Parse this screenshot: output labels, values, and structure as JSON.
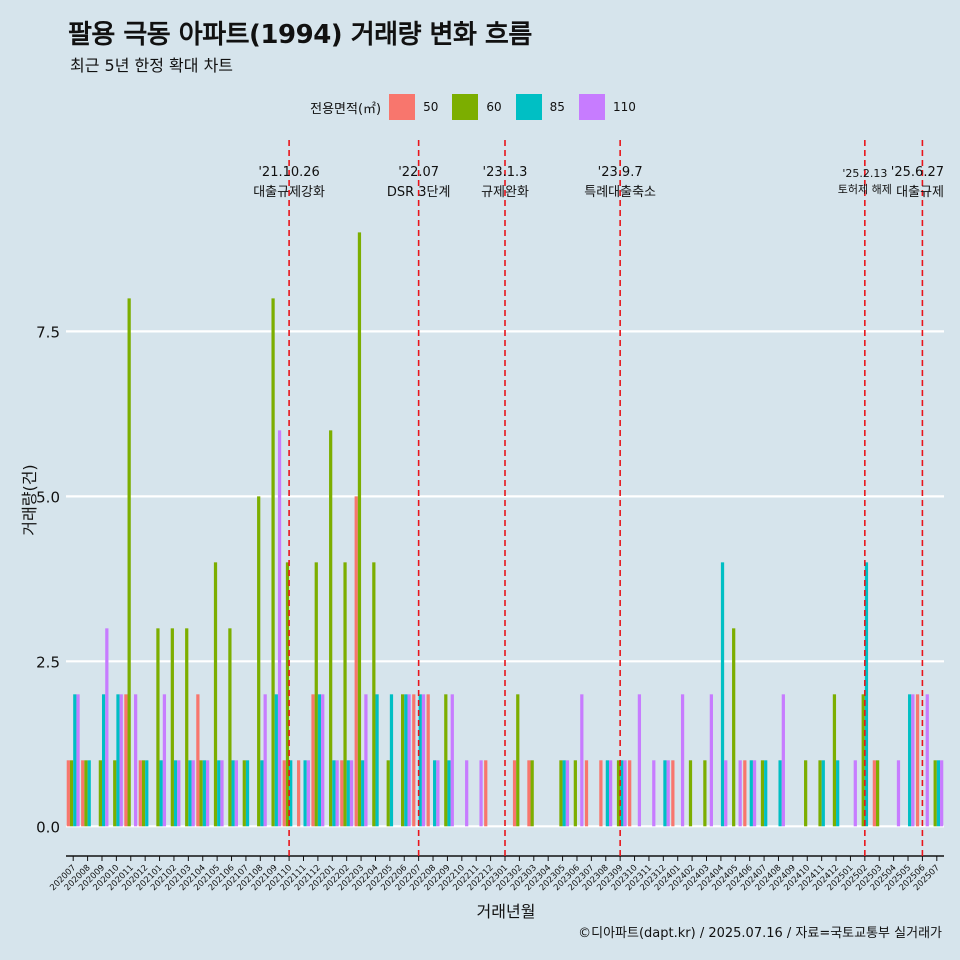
{
  "header": {
    "title": "팔용 극동 아파트(1994) 거래량 변화 흐름",
    "subtitle": "최근 5년 한정 확대 차트"
  },
  "legend": {
    "title": "전용면적(㎡)",
    "items": [
      {
        "label": "50",
        "color": "#F8766D"
      },
      {
        "label": "60",
        "color": "#7CAE00"
      },
      {
        "label": "85",
        "color": "#00BFC4"
      },
      {
        "label": "110",
        "color": "#C77CFF"
      }
    ]
  },
  "caption": "©디아파트(dapt.kr) / 2025.07.16 / 자료=국토교통부 실거래가",
  "chart_data": {
    "type": "bar",
    "title": "팔용 극동 아파트(1994) 거래량 변화 흐름",
    "xlabel": "거래년월",
    "ylabel": "거래량(건)",
    "ylim": [
      -0.45,
      10.4
    ],
    "yticks": [
      0.0,
      2.5,
      5.0,
      7.5
    ],
    "ytick_labels": [
      "0.0",
      "2.5",
      "5.0",
      "7.5"
    ],
    "categories": [
      "202007",
      "202008",
      "202009",
      "202010",
      "202011",
      "202012",
      "202101",
      "202102",
      "202103",
      "202104",
      "202105",
      "202106",
      "202107",
      "202108",
      "202109",
      "202110",
      "202111",
      "202112",
      "202201",
      "202202",
      "202203",
      "202204",
      "202205",
      "202206",
      "202207",
      "202208",
      "202209",
      "202210",
      "202211",
      "202212",
      "202301",
      "202302",
      "202303",
      "202304",
      "202305",
      "202306",
      "202307",
      "202308",
      "202309",
      "202310",
      "202311",
      "202312",
      "202401",
      "202402",
      "202403",
      "202404",
      "202405",
      "202406",
      "202407",
      "202408",
      "202409",
      "202410",
      "202411",
      "202412",
      "202501",
      "202502",
      "202503",
      "202504",
      "202505",
      "202506",
      "202507"
    ],
    "series": [
      {
        "name": "50",
        "values": [
          1,
          1,
          0,
          0,
          2,
          1,
          0,
          0,
          0,
          2,
          0,
          0,
          0,
          0,
          0,
          1,
          1,
          2,
          0,
          1,
          5,
          0,
          0,
          0,
          2,
          2,
          0,
          0,
          0,
          1,
          0,
          1,
          1,
          0,
          0,
          0,
          1,
          1,
          0,
          1,
          0,
          0,
          1,
          0,
          0,
          0,
          0,
          1,
          0,
          0,
          0,
          0,
          0,
          0,
          0,
          0,
          1,
          0,
          0,
          2,
          0
        ]
      },
      {
        "name": "60",
        "values": [
          1,
          1,
          1,
          1,
          8,
          1,
          3,
          3,
          3,
          1,
          4,
          3,
          1,
          5,
          8,
          4,
          0,
          4,
          6,
          4,
          9,
          4,
          1,
          2,
          0,
          0,
          2,
          0,
          0,
          0,
          0,
          2,
          1,
          0,
          1,
          1,
          0,
          0,
          1,
          0,
          0,
          0,
          0,
          1,
          1,
          0,
          3,
          0,
          1,
          0,
          0,
          1,
          1,
          2,
          0,
          2,
          1,
          0,
          0,
          0,
          1
        ]
      },
      {
        "name": "85",
        "values": [
          2,
          1,
          2,
          2,
          0,
          1,
          1,
          1,
          1,
          1,
          1,
          1,
          1,
          1,
          2,
          1,
          1,
          2,
          1,
          1,
          1,
          2,
          2,
          2,
          2,
          1,
          1,
          0,
          0,
          0,
          0,
          0,
          0,
          0,
          1,
          0,
          0,
          1,
          1,
          0,
          0,
          1,
          0,
          0,
          0,
          4,
          0,
          1,
          1,
          1,
          0,
          0,
          1,
          1,
          0,
          4,
          0,
          0,
          2,
          0,
          1
        ]
      },
      {
        "name": "110",
        "values": [
          2,
          0,
          3,
          2,
          2,
          0,
          2,
          1,
          1,
          1,
          1,
          1,
          0,
          2,
          6,
          0,
          1,
          2,
          1,
          1,
          2,
          0,
          0,
          2,
          2,
          1,
          2,
          1,
          1,
          0,
          0,
          0,
          0,
          0,
          1,
          2,
          0,
          1,
          1,
          2,
          1,
          1,
          2,
          0,
          2,
          1,
          1,
          1,
          0,
          2,
          0,
          0,
          0,
          0,
          1,
          0,
          0,
          1,
          2,
          2,
          1
        ]
      }
    ],
    "events": [
      {
        "category": "202110",
        "date": "'21.10.26",
        "label": "대출규제강화"
      },
      {
        "category": "202207",
        "date": "'22.07",
        "label": "DSR 3단계"
      },
      {
        "category": "202301",
        "date": "'23.1.3",
        "label": "규제완화"
      },
      {
        "category": "202309",
        "date": "'23.9.7",
        "label": "특례대출축소"
      },
      {
        "category": "202502",
        "date": "'25.2.13",
        "label": "토허제 해제"
      },
      {
        "category": "202506",
        "date": "'25.6.27",
        "label": "대출규제"
      }
    ]
  }
}
